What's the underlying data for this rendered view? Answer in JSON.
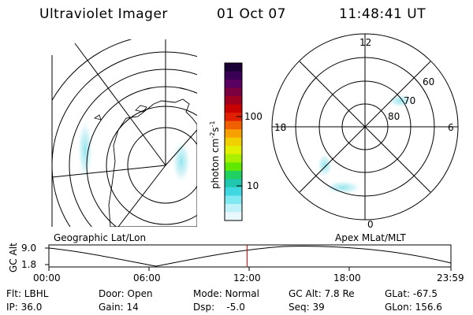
{
  "header": {
    "title": "Ultraviolet Imager",
    "date": "01 Oct 07",
    "time": "11:48:41 UT"
  },
  "colorbar": {
    "unit_main": "photon cm",
    "unit_exp1": "-2",
    "unit_s": "s",
    "unit_exp2": "-1",
    "ticks": [
      "100",
      "10"
    ],
    "colors": [
      "#1a0033",
      "#3a0055",
      "#5a0060",
      "#7a0040",
      "#a00020",
      "#c80000",
      "#e02000",
      "#f06000",
      "#f8a000",
      "#f0d000",
      "#e0f000",
      "#a8f000",
      "#60e800",
      "#20d060",
      "#20c8b0",
      "#40d8e0",
      "#80e8f0",
      "#c0f0f8",
      "#e8f8fc"
    ]
  },
  "left_panel": {
    "label": "Geographic Lat/Lon"
  },
  "right_panel": {
    "label": "Apex MLat/MLT",
    "mlt_labels": {
      "top": "12",
      "left": "18",
      "right": "6",
      "bottom": "0"
    },
    "mlat_labels": [
      "60",
      "70",
      "80"
    ]
  },
  "altitude_plot": {
    "ylabel": "GC Alt",
    "yticks": [
      "9.0",
      "1.8"
    ],
    "xticks": [
      "00:00",
      "06:00",
      "12:00",
      "18:00",
      "23:59"
    ],
    "marker_color": "#cc0000",
    "current_time_fraction": 0.493
  },
  "info": {
    "row1": {
      "flt": "Flt: LBHL",
      "door": "Door: Open",
      "mode": "Mode: Normal",
      "gcalt": "GC Alt: 7.8 Re",
      "glat": "GLat: -67.5"
    },
    "row2": {
      "ip": "IP: 36.0",
      "gain": "Gain: 14",
      "dsp": "Dsp:    -5.0",
      "seq": "Seq: 39",
      "glon": "GLon: 156.6"
    }
  }
}
